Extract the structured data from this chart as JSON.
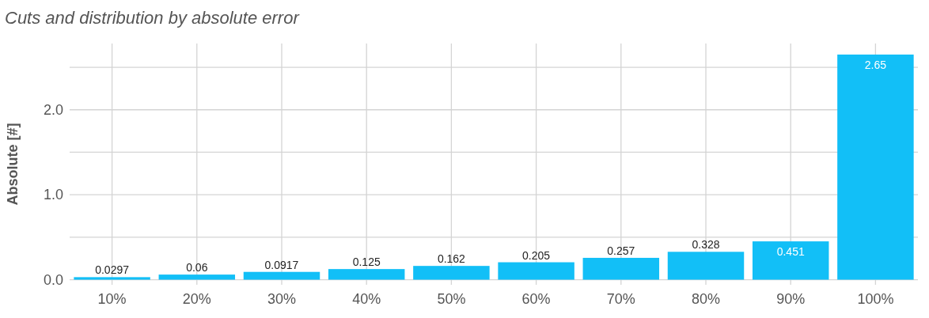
{
  "chart_data": {
    "type": "bar",
    "title": "Cuts and distribution by absolute error",
    "ylabel": "Absolute [#]",
    "categories": [
      "10%",
      "20%",
      "30%",
      "40%",
      "50%",
      "60%",
      "70%",
      "80%",
      "90%",
      "100%"
    ],
    "values": [
      0.0297,
      0.06,
      0.0917,
      0.125,
      0.162,
      0.205,
      0.257,
      0.328,
      0.451,
      2.65
    ],
    "color": "#12bff7",
    "ylim": [
      -0.06,
      2.78
    ],
    "yticks": [
      {
        "value": 0,
        "label": "0.0"
      },
      {
        "value": 0.5,
        "label": null
      },
      {
        "value": 1,
        "label": "1.0"
      },
      {
        "value": 1.5,
        "label": null
      },
      {
        "value": 2,
        "label": "2.0"
      },
      {
        "value": 2.5,
        "label": null
      }
    ],
    "grid": true,
    "data_labels": true
  }
}
